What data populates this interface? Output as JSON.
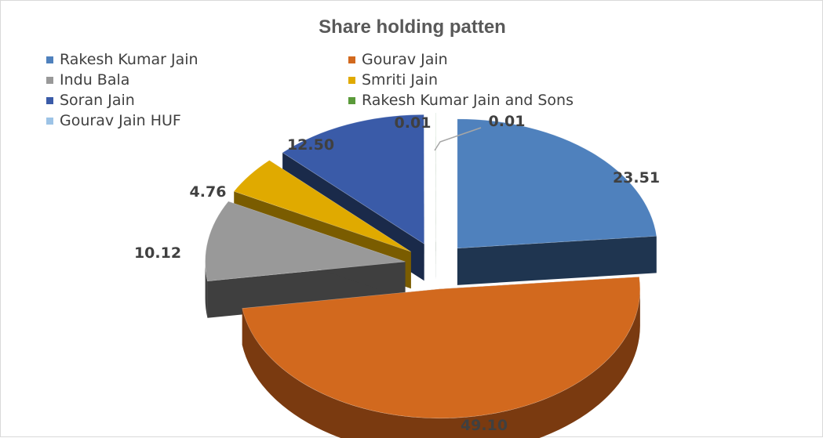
{
  "chart_data": {
    "type": "pie",
    "title": "Share holding patten",
    "legend_position": "top",
    "style": "3d-exploded",
    "slices": [
      {
        "label": "Rakesh Kumar Jain",
        "value": 23.51,
        "display": "23.51",
        "color": "#4f81bd",
        "dark": "#1f3550"
      },
      {
        "label": "Gourav Jain",
        "value": 49.1,
        "display": "49.10",
        "color": "#d2691e",
        "dark": "#7a3a10"
      },
      {
        "label": "Indu Bala",
        "value": 10.12,
        "display": "10.12",
        "color": "#999999",
        "dark": "#3f3f3f"
      },
      {
        "label": "Smriti Jain",
        "value": 4.76,
        "display": "4.76",
        "color": "#e0aa00",
        "dark": "#7a5c00"
      },
      {
        "label": "Soran Jain",
        "value": 12.5,
        "display": "12.50",
        "color": "#3a5ba8",
        "dark": "#1a2a4a"
      },
      {
        "label": "Rakesh Kumar Jain and Sons",
        "value": 0.01,
        "display": "0.01",
        "color": "#5a9a3a",
        "dark": "#2e5020"
      },
      {
        "label": "Gourav Jain HUF",
        "value": 0.01,
        "display": "0.01",
        "color": "#9dc3e6",
        "dark": "#4f6e8a"
      }
    ]
  }
}
